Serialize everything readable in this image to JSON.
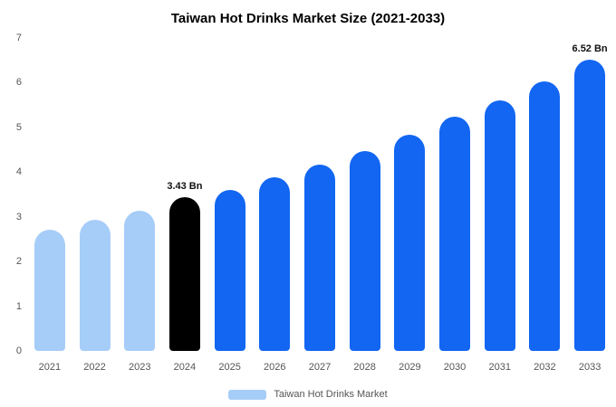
{
  "chart_data": {
    "type": "bar",
    "title": "Taiwan Hot Drinks Market Size (2021-2033)",
    "xlabel": "",
    "ylabel": "",
    "ylim": [
      0,
      7
    ],
    "yticks": [
      0,
      1,
      2,
      3,
      4,
      5,
      6,
      7
    ],
    "grid": false,
    "legend_position": "bottom",
    "categories": [
      "2021",
      "2022",
      "2023",
      "2024",
      "2025",
      "2026",
      "2027",
      "2028",
      "2029",
      "2030",
      "2031",
      "2032",
      "2033"
    ],
    "values": [
      2.71,
      2.93,
      3.14,
      3.43,
      3.6,
      3.89,
      4.17,
      4.47,
      4.83,
      5.24,
      5.6,
      6.02,
      6.52
    ],
    "bar_colors": [
      "#a6cdf8",
      "#a6cdf8",
      "#a6cdf8",
      "#000000",
      "#1266f2",
      "#1266f2",
      "#1266f2",
      "#1266f2",
      "#1266f2",
      "#1266f2",
      "#1266f2",
      "#1266f2",
      "#1266f2"
    ],
    "annotations": [
      {
        "index": 3,
        "text": "3.43 Bn"
      },
      {
        "index": 12,
        "text": "6.52 Bn"
      }
    ],
    "legend": [
      {
        "label": "Taiwan Hot Drinks Market",
        "color": "#a6cdf8"
      }
    ],
    "colors": {
      "early_years": "#a6cdf8",
      "highlight_year": "#000000",
      "forecast_years": "#1266f2",
      "axis_text": "#555555",
      "title_text": "#000000",
      "background": "#ffffff"
    }
  }
}
